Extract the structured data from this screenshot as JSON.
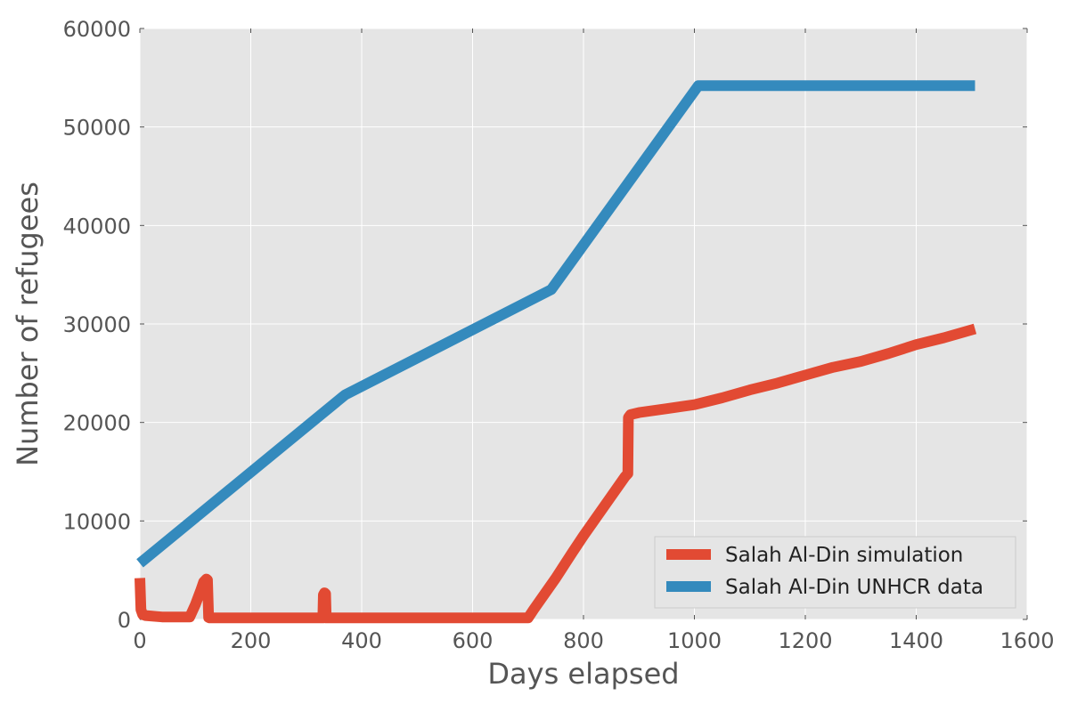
{
  "chart_data": {
    "type": "line",
    "title": "",
    "xlabel": "Days elapsed",
    "ylabel": "Number of refugees",
    "xlim": [
      0,
      1600
    ],
    "ylim": [
      0,
      60000
    ],
    "xticks": [
      0,
      200,
      400,
      600,
      800,
      1000,
      1200,
      1400,
      1600
    ],
    "xtick_labels": [
      "0",
      "200",
      "400",
      "600",
      "800",
      "1000",
      "1200",
      "1400",
      "1600"
    ],
    "yticks": [
      0,
      10000,
      20000,
      30000,
      40000,
      50000,
      60000
    ],
    "ytick_labels": [
      "0",
      "10000",
      "20000",
      "30000",
      "40000",
      "50000",
      "60000"
    ],
    "grid": true,
    "legend_position": "lower-right",
    "series": [
      {
        "name": "Salah Al-Din simulation",
        "color": "#E24A33",
        "x": [
          0,
          2,
          5,
          10,
          20,
          30,
          40,
          60,
          80,
          90,
          100,
          110,
          115,
          120,
          122,
          124,
          126,
          130,
          200,
          300,
          330,
          331,
          333,
          335,
          336,
          337,
          340,
          400,
          500,
          600,
          650,
          700,
          710,
          750,
          780,
          800,
          850,
          875,
          880,
          881,
          885,
          900,
          950,
          1000,
          1050,
          1100,
          1150,
          1200,
          1250,
          1300,
          1350,
          1400,
          1450,
          1506
        ],
        "y": [
          4200,
          1000,
          500,
          400,
          350,
          300,
          250,
          250,
          250,
          250,
          1500,
          3000,
          3800,
          4100,
          4000,
          200,
          150,
          150,
          150,
          150,
          150,
          2500,
          2700,
          2600,
          150,
          150,
          150,
          150,
          150,
          150,
          150,
          150,
          1000,
          4200,
          6800,
          8500,
          12500,
          14500,
          14800,
          20500,
          20800,
          21000,
          21400,
          21800,
          22500,
          23300,
          24000,
          24800,
          25600,
          26200,
          27000,
          27900,
          28600,
          29500
        ]
      },
      {
        "name": "Salah Al-Din UNHCR data",
        "color": "#348ABD",
        "x": [
          0,
          370,
          742,
          1007,
          1506
        ],
        "y": [
          5700,
          22800,
          33500,
          54200,
          54200
        ]
      }
    ]
  }
}
